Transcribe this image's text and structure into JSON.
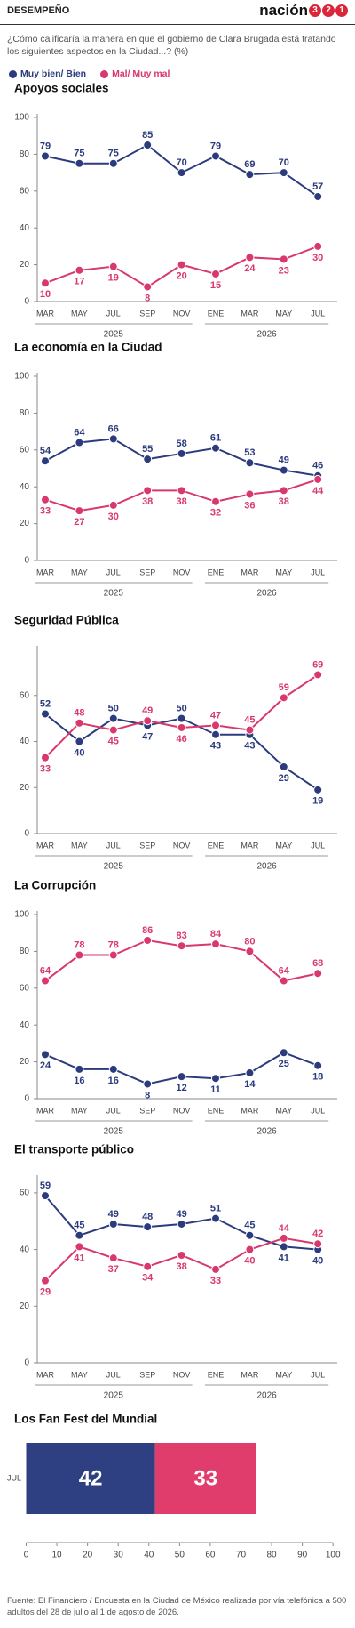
{
  "header": {
    "section": "DESEMPEÑO",
    "brand": "nación",
    "brand_digits": [
      "3",
      "2",
      "1"
    ]
  },
  "question": "¿Cómo calificaría la manera en que el gobierno de Clara Brugada está tratando los siguientes aspectos en la Ciudad...?  (%)",
  "legend": [
    {
      "name": "Muy bien/ Bien",
      "color": "#2b3b7e"
    },
    {
      "name": "Mal/ Muy mal",
      "color": "#d9386c"
    }
  ],
  "chart_data": [
    {
      "type": "line",
      "title": "Apoyos sociales",
      "categories": [
        "MAR",
        "MAY",
        "JUL",
        "SEP",
        "NOV",
        "ENE",
        "MAR",
        "MAY",
        "JUL"
      ],
      "groups": [
        {
          "label": "2025",
          "span": 5
        },
        {
          "label": "2026",
          "span": 4
        }
      ],
      "ylim": [
        0,
        100
      ],
      "yticks": [
        0,
        20,
        40,
        60,
        80,
        100
      ],
      "series": [
        {
          "color": "#2b3b7e",
          "values": [
            79,
            75,
            75,
            85,
            70,
            79,
            69,
            70,
            57
          ]
        },
        {
          "color": "#d9386c",
          "values": [
            10,
            17,
            19,
            8,
            20,
            15,
            24,
            23,
            30
          ]
        }
      ]
    },
    {
      "type": "line",
      "title": "La economía en la Ciudad",
      "categories": [
        "MAR",
        "MAY",
        "JUL",
        "SEP",
        "NOV",
        "ENE",
        "MAR",
        "MAY",
        "JUL"
      ],
      "groups": [
        {
          "label": "2025",
          "span": 5
        },
        {
          "label": "2026",
          "span": 4
        }
      ],
      "ylim": [
        0,
        100
      ],
      "yticks": [
        0,
        20,
        40,
        60,
        80,
        100
      ],
      "series": [
        {
          "color": "#2b3b7e",
          "values": [
            54,
            64,
            66,
            55,
            58,
            61,
            53,
            49,
            46
          ]
        },
        {
          "color": "#d9386c",
          "values": [
            33,
            27,
            30,
            38,
            38,
            32,
            36,
            38,
            44
          ]
        }
      ]
    },
    {
      "type": "line",
      "title": "Seguridad Pública",
      "categories": [
        "MAR",
        "MAY",
        "JUL",
        "SEP",
        "NOV",
        "ENE",
        "MAR",
        "MAY",
        "JUL"
      ],
      "groups": [
        {
          "label": "2025",
          "span": 5
        },
        {
          "label": "2026",
          "span": 4
        }
      ],
      "ylim": [
        0,
        80
      ],
      "yticks": [
        0,
        20,
        40,
        60
      ],
      "series": [
        {
          "color": "#2b3b7e",
          "values": [
            52,
            40,
            50,
            47,
            50,
            43,
            43,
            29,
            19
          ]
        },
        {
          "color": "#d9386c",
          "values": [
            33,
            48,
            45,
            49,
            46,
            47,
            45,
            59,
            69
          ]
        }
      ]
    },
    {
      "type": "line",
      "title": "La Corrupción",
      "categories": [
        "MAR",
        "MAY",
        "JUL",
        "SEP",
        "NOV",
        "ENE",
        "MAR",
        "MAY",
        "JUL"
      ],
      "groups": [
        {
          "label": "2025",
          "span": 5
        },
        {
          "label": "2026",
          "span": 4
        }
      ],
      "ylim": [
        0,
        100
      ],
      "yticks": [
        0,
        20,
        40,
        60,
        80,
        100
      ],
      "series": [
        {
          "color": "#2b3b7e",
          "values": [
            24,
            16,
            16,
            8,
            12,
            11,
            14,
            25,
            18
          ]
        },
        {
          "color": "#d9386c",
          "values": [
            64,
            78,
            78,
            86,
            83,
            84,
            80,
            64,
            68
          ]
        }
      ]
    },
    {
      "type": "line",
      "title": "El transporte público",
      "categories": [
        "MAR",
        "MAY",
        "JUL",
        "SEP",
        "NOV",
        "ENE",
        "MAR",
        "MAY",
        "JUL"
      ],
      "groups": [
        {
          "label": "2025",
          "span": 5
        },
        {
          "label": "2026",
          "span": 4
        }
      ],
      "ylim": [
        0,
        65
      ],
      "yticks": [
        0,
        20,
        40,
        60
      ],
      "series": [
        {
          "color": "#2b3b7e",
          "values": [
            59,
            45,
            49,
            48,
            49,
            51,
            45,
            41,
            40
          ]
        },
        {
          "color": "#d9386c",
          "values": [
            29,
            41,
            37,
            34,
            38,
            33,
            40,
            44,
            42
          ]
        }
      ]
    },
    {
      "type": "hbar",
      "title": "Los Fan Fest del Mundial",
      "categories": [
        "JUL"
      ],
      "xlim": [
        0,
        100
      ],
      "xticks": [
        0,
        10,
        20,
        30,
        40,
        50,
        60,
        70,
        80,
        90,
        100
      ],
      "series": [
        {
          "color": "#2e3f82",
          "values": [
            42
          ]
        },
        {
          "color": "#e03c6c",
          "values": [
            33
          ]
        }
      ]
    }
  ],
  "footer": "Fuente: El Financiero /  Encuesta en la Ciudad de México realizada por vía telefónica a 500 adultos del 28 de julio al 1 de agosto de 2026."
}
